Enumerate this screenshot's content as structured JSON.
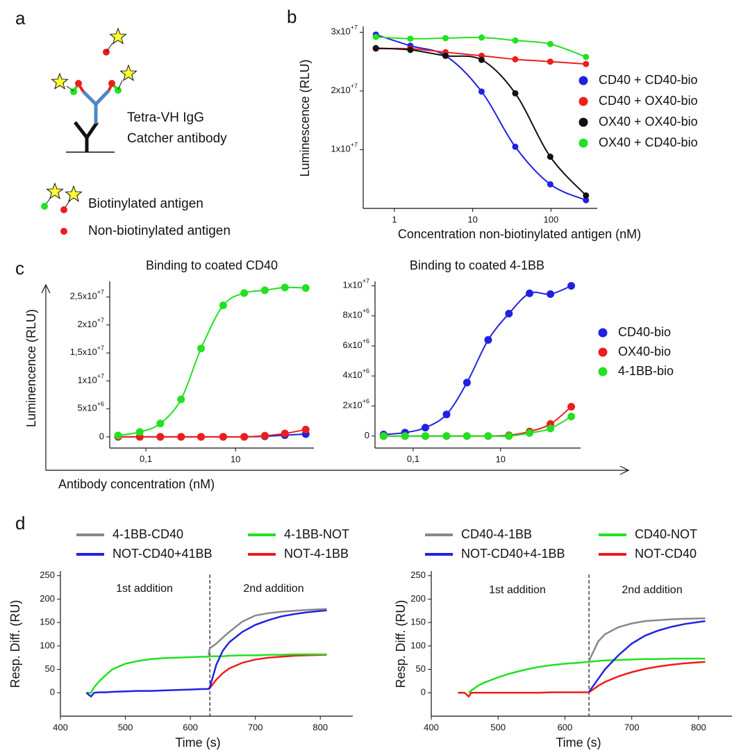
{
  "panel_labels": [
    "a",
    "b",
    "c",
    "d"
  ],
  "diagram": {
    "labels": [
      "Tetra-VH IgG",
      "Catcher antibody"
    ],
    "legend": [
      "Biotinylated antigen",
      "Non-biotinylated antigen"
    ]
  },
  "chart_data": [
    {
      "type": "line",
      "curve": "smooth",
      "markers": true,
      "log_x": true,
      "legend": "right",
      "xlabel": "Concentration non-biotinylated antigen (nM)",
      "ylabel": "Luminescence (RLU)",
      "x": [
        0.58,
        1.6,
        4.5,
        13,
        35,
        98,
        280
      ],
      "series": [
        {
          "name": "CD40 + CD40-bio",
          "color": "#2121e0",
          "values": [
            29600000,
            27700000,
            26000000,
            19900000,
            10500000,
            4100000,
            1400000
          ]
        },
        {
          "name": "CD40 + OX40-bio",
          "color": "#ee1c1c",
          "values": [
            27200000,
            27200000,
            26600000,
            26000000,
            25400000,
            25000000,
            24600000
          ]
        },
        {
          "name": "OX40 + OX40-bio",
          "color": "#111111",
          "values": [
            27300000,
            27000000,
            26000000,
            25300000,
            19600000,
            8800000,
            2200000
          ]
        },
        {
          "name": "OX40 + CD40-bio",
          "color": "#22e022",
          "values": [
            29200000,
            28900000,
            29000000,
            29100000,
            28600000,
            28000000,
            25800000
          ]
        }
      ],
      "xlim": [
        0.4,
        390
      ],
      "ylim": [
        0,
        31000000
      ],
      "xticks": [
        1,
        10,
        100
      ],
      "yticks": [
        {
          "value": 10000000,
          "label": "1x10",
          "exponent": "+7"
        },
        {
          "value": 20000000,
          "label": "2x10",
          "exponent": "+7"
        },
        {
          "value": 30000000,
          "label": "3x10",
          "exponent": "+7"
        }
      ]
    },
    {
      "type": "line",
      "curve": "smooth",
      "markers": true,
      "log_x": true,
      "legend": "right",
      "title": "Binding to coated CD40",
      "xlabel": "Antibody concentration (nM)",
      "ylabel": "Luminencence (RLU)",
      "x": [
        0.024,
        0.073,
        0.21,
        0.61,
        1.7,
        5.3,
        15.6,
        45,
        126,
        368
      ],
      "series": [
        {
          "name": "CD40-bio",
          "color": "#2121e0",
          "values": [
            0,
            0,
            0,
            0,
            0,
            0,
            0,
            100000,
            300000,
            500000
          ]
        },
        {
          "name": "OX40-bio",
          "color": "#ee1c1c",
          "values": [
            0,
            0,
            0,
            0,
            0,
            0,
            0,
            200000,
            600000,
            1300000
          ]
        },
        {
          "name": "4-1BB-bio",
          "color": "#22e022",
          "values": [
            250000,
            870000,
            2400000,
            6700000,
            15800000,
            23500000,
            25700000,
            26200000,
            26700000,
            26600000
          ]
        }
      ],
      "xlim": [
        0.0156,
        560
      ],
      "ylim": [
        -2000000,
        27800000
      ],
      "xticks": [
        {
          "value": 0.1,
          "label": "0,1"
        },
        10
      ],
      "yticks": [
        0,
        {
          "value": 5000000,
          "label": "5x10",
          "exponent": "+6"
        },
        {
          "value": 10000000,
          "label": "1x10",
          "exponent": "+7"
        },
        {
          "value": 15000000,
          "label": "1,5x10",
          "exponent": "+7"
        },
        {
          "value": 20000000,
          "label": "2x10",
          "exponent": "+7"
        },
        {
          "value": 25000000,
          "label": "2,5x10",
          "exponent": "+7"
        }
      ]
    },
    {
      "type": "line",
      "curve": "smooth",
      "markers": true,
      "log_x": true,
      "title": "Binding to coated 4-1BB",
      "x": [
        0.021,
        0.065,
        0.19,
        0.58,
        1.7,
        5.2,
        15.5,
        46,
        138,
        414
      ],
      "series": [
        {
          "name": "CD40-bio",
          "color": "#2121e0",
          "values": [
            100000,
            230000,
            560000,
            1440000,
            3560000,
            6400000,
            8150000,
            9500000,
            9450000,
            10000000
          ]
        },
        {
          "name": "OX40-bio",
          "color": "#ee1c1c",
          "values": [
            0,
            0,
            0,
            0,
            0,
            0,
            50000,
            300000,
            800000,
            1950000
          ]
        },
        {
          "name": "4-1BB-bio",
          "color": "#22e022",
          "values": [
            0,
            0,
            0,
            0,
            0,
            0,
            0,
            200000,
            500000,
            1300000
          ]
        }
      ],
      "xlim": [
        0.0134,
        676
      ],
      "ylim": [
        -800000,
        10300000
      ],
      "xticks": [
        {
          "value": 0.1,
          "label": "0,1"
        },
        10
      ],
      "yticks": [
        0,
        {
          "value": 2000000,
          "label": "2x10",
          "exponent": "+6"
        },
        {
          "value": 4000000,
          "label": "4x10",
          "exponent": "+6"
        },
        {
          "value": 6000000,
          "label": "6x10",
          "exponent": "+6"
        },
        {
          "value": 8000000,
          "label": "8x10",
          "exponent": "+6"
        },
        {
          "value": 10000000,
          "label": "1x10",
          "exponent": "+7"
        }
      ]
    },
    {
      "type": "line",
      "curve": "straight",
      "markers": false,
      "legend": "top",
      "xlabel": "Time (s)",
      "ylabel": "Resp. Diff. (RU)",
      "annotations": [
        "1st addition",
        "2nd addition"
      ],
      "divider_x": 630,
      "x": [
        440,
        447,
        452,
        460,
        470,
        480,
        500,
        520,
        540,
        560,
        580,
        600,
        620,
        628,
        630,
        640,
        650,
        660,
        680,
        700,
        720,
        740,
        760,
        780,
        810
      ],
      "series": [
        {
          "name": "4-1BB-CD40",
          "color": "#888888",
          "values": [
            null,
            null,
            null,
            null,
            null,
            null,
            null,
            null,
            null,
            null,
            null,
            null,
            null,
            80,
            95,
            105,
            118,
            130,
            152,
            165,
            170,
            173,
            175,
            177,
            179
          ]
        },
        {
          "name": "NOT-CD40+41BB",
          "color": "#2121e0",
          "values": [
            0,
            -8,
            0,
            1,
            1,
            2,
            3,
            4,
            4,
            5,
            6,
            7,
            8,
            8,
            12,
            60,
            90,
            108,
            130,
            145,
            155,
            163,
            168,
            172,
            176
          ]
        },
        {
          "name": "4-1BB-NOT",
          "color": "#22e022",
          "values": [
            0,
            0,
            12,
            25,
            38,
            50,
            62,
            68,
            72,
            74,
            75,
            76,
            77,
            77,
            78,
            78,
            78,
            79,
            80,
            80,
            81,
            81,
            82,
            82,
            82
          ]
        },
        {
          "name": "NOT-4-1BB",
          "color": "#ee1c1c",
          "values": [
            null,
            null,
            null,
            null,
            null,
            null,
            null,
            null,
            null,
            null,
            null,
            null,
            null,
            8,
            10,
            28,
            42,
            52,
            64,
            71,
            75,
            77,
            79,
            80,
            81
          ]
        }
      ],
      "xlim": [
        400,
        850
      ],
      "ylim": [
        -50,
        260
      ],
      "xticks": [
        400,
        500,
        600,
        700,
        800
      ],
      "yticks": [
        0,
        50,
        100,
        150,
        200,
        250
      ]
    },
    {
      "type": "line",
      "curve": "straight",
      "markers": false,
      "legend": "top",
      "xlabel": "Time (s)",
      "ylabel": "Resp. Diff. (RU)",
      "annotations": [
        "1st addition",
        "2nd addition"
      ],
      "divider_x": 636,
      "x": [
        440,
        450,
        456,
        460,
        470,
        480,
        500,
        520,
        540,
        560,
        580,
        600,
        620,
        636,
        650,
        660,
        680,
        700,
        720,
        740,
        760,
        780,
        810
      ],
      "series": [
        {
          "name": "CD40-4-1BB",
          "color": "#888888",
          "values": [
            null,
            null,
            null,
            null,
            null,
            null,
            null,
            null,
            null,
            null,
            null,
            null,
            null,
            68,
            110,
            125,
            140,
            148,
            153,
            155,
            157,
            158,
            159
          ]
        },
        {
          "name": "NOT-CD40+4-1BB",
          "color": "#2121e0",
          "values": [
            null,
            null,
            null,
            null,
            null,
            null,
            null,
            null,
            null,
            null,
            null,
            null,
            null,
            2,
            30,
            50,
            80,
            105,
            122,
            133,
            141,
            147,
            153
          ]
        },
        {
          "name": "CD40-NOT",
          "color": "#22e022",
          "values": [
            null,
            null,
            0,
            5,
            15,
            22,
            33,
            42,
            49,
            55,
            59,
            62,
            64,
            66,
            68,
            69,
            70,
            71,
            72,
            72,
            73,
            73,
            73
          ]
        },
        {
          "name": "NOT-CD40",
          "color": "#ee1c1c",
          "values": [
            0,
            0,
            -8,
            0,
            0,
            0,
            0,
            0,
            0,
            0,
            1,
            1,
            1,
            1,
            15,
            23,
            35,
            44,
            51,
            56,
            60,
            63,
            66
          ]
        }
      ],
      "xlim": [
        400,
        850
      ],
      "ylim": [
        -50,
        260
      ],
      "xticks": [
        400,
        500,
        600,
        700,
        800
      ],
      "yticks": [
        0,
        50,
        100,
        150,
        200,
        250
      ]
    }
  ]
}
